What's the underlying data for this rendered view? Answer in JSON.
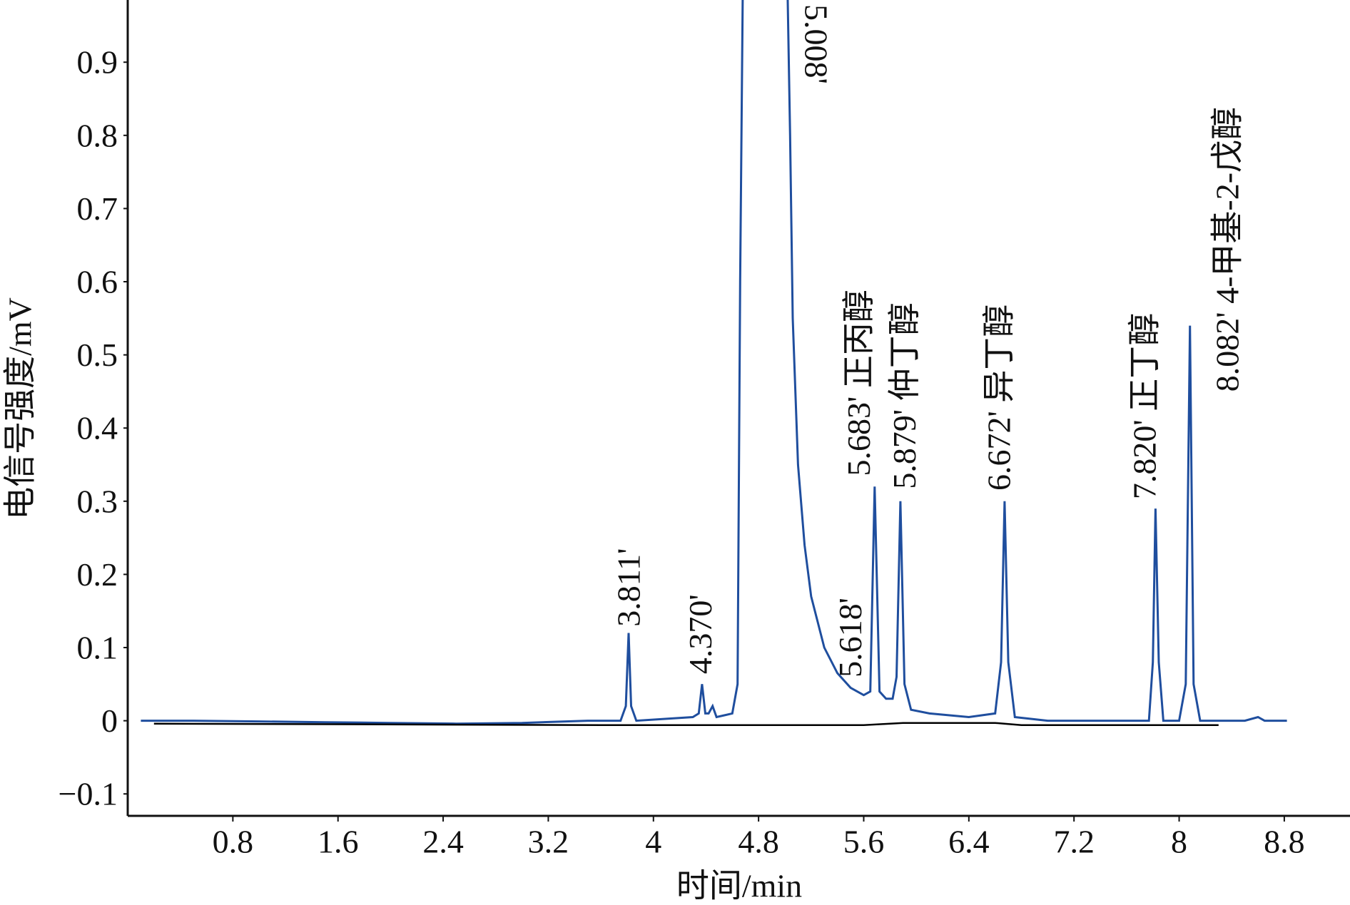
{
  "chart_data": {
    "type": "line",
    "xlabel": "时间/min",
    "ylabel": "电信号强度/mV",
    "xlim": [
      0,
      9.3
    ],
    "ylim": [
      -0.13,
      0.985
    ],
    "xticks": [
      0.8,
      1.6,
      2.4,
      3.2,
      4,
      4.8,
      5.6,
      6.4,
      7.2,
      8,
      8.8
    ],
    "yticks": [
      {
        "value": -0.1,
        "label": "−0.1"
      },
      0,
      0.1,
      0.2,
      0.3,
      0.4,
      0.5,
      0.6,
      0.7,
      0.8,
      0.9
    ],
    "series": [
      {
        "color": "#1f4e9e",
        "x": [
          0.1,
          0.5,
          1.0,
          1.5,
          2.0,
          2.5,
          3.0,
          3.5,
          3.75,
          3.79,
          3.811,
          3.83,
          3.87,
          4.3,
          4.345,
          4.37,
          4.395,
          4.42,
          4.45,
          4.48,
          4.6,
          4.64,
          4.66,
          4.68,
          5.02,
          5.04,
          5.06,
          5.1,
          5.15,
          5.2,
          5.3,
          5.4,
          5.5,
          5.6,
          5.65,
          5.683,
          5.72,
          5.77,
          5.82,
          5.85,
          5.879,
          5.91,
          5.96,
          6.1,
          6.4,
          6.6,
          6.645,
          6.672,
          6.7,
          6.75,
          7.0,
          7.5,
          7.77,
          7.8,
          7.82,
          7.845,
          7.88,
          8.0,
          8.05,
          8.082,
          8.11,
          8.16,
          8.5,
          8.6,
          8.65,
          8.82
        ],
        "values": [
          0,
          0,
          -0.001,
          -0.002,
          -0.003,
          -0.004,
          -0.003,
          0,
          0,
          0.02,
          0.12,
          0.02,
          0,
          0.005,
          0.01,
          0.05,
          0.01,
          0.01,
          0.02,
          0.005,
          0.01,
          0.05,
          0.6,
          1.0,
          1.0,
          0.8,
          0.55,
          0.35,
          0.24,
          0.17,
          0.1,
          0.065,
          0.045,
          0.035,
          0.04,
          0.32,
          0.04,
          0.03,
          0.03,
          0.06,
          0.3,
          0.05,
          0.015,
          0.01,
          0.005,
          0.01,
          0.08,
          0.3,
          0.08,
          0.005,
          0,
          0,
          0,
          0.08,
          0.29,
          0.08,
          0,
          0,
          0.05,
          0.54,
          0.05,
          0,
          0,
          0.005,
          0,
          0
        ]
      },
      {
        "color": "#000000",
        "x": [
          0.2,
          3.6,
          5.6,
          5.9,
          6.6,
          6.8,
          8.3
        ],
        "values": [
          -0.004,
          -0.006,
          -0.006,
          -0.003,
          -0.003,
          -0.006,
          -0.006
        ]
      }
    ],
    "annotations": [
      "3.811'",
      "4.370'",
      "5.008'",
      "5.618'",
      "5.683' 正丙醇",
      "5.879' 仲丁醇",
      "6.672' 异丁醇",
      "7.820' 正丁醇",
      "8.082' 4-甲基-2-戊醇"
    ]
  }
}
